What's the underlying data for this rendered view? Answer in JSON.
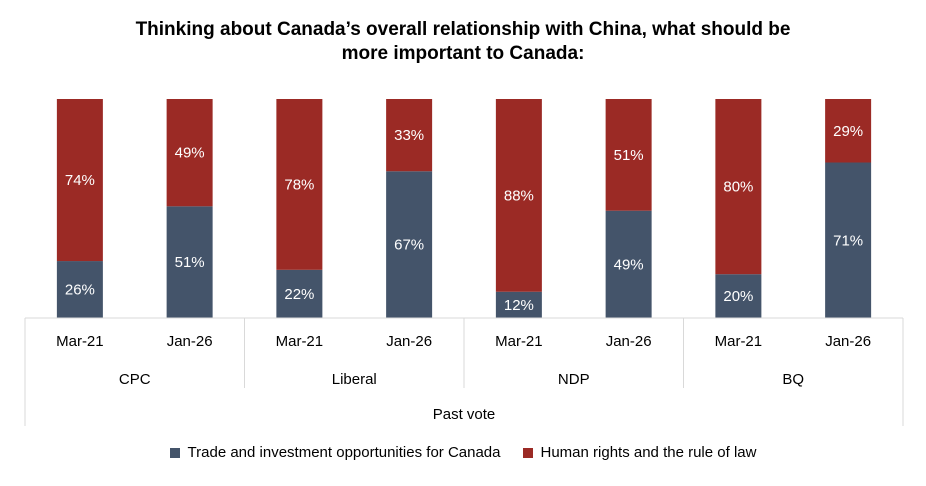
{
  "chart_data": {
    "type": "bar",
    "stacked": true,
    "percent_stacked": true,
    "title": "Thinking about Canada’s overall relationship with China, what should be more important to Canada:",
    "title_lines": [
      "Thinking about Canada’s overall relationship with China, what should be",
      "more important to Canada:"
    ],
    "xlabel": "Past vote",
    "ylabel": "",
    "ylim": [
      0,
      100
    ],
    "grid": false,
    "legend_position": "bottom",
    "groups": [
      {
        "name": "CPC",
        "categories": [
          "Mar-21",
          "Jan-26"
        ]
      },
      {
        "name": "Liberal",
        "categories": [
          "Mar-21",
          "Jan-26"
        ]
      },
      {
        "name": "NDP",
        "categories": [
          "Mar-21",
          "Jan-26"
        ]
      },
      {
        "name": "BQ",
        "categories": [
          "Mar-21",
          "Jan-26"
        ]
      }
    ],
    "categories": [
      "Mar-21",
      "Jan-26",
      "Mar-21",
      "Jan-26",
      "Mar-21",
      "Jan-26",
      "Mar-21",
      "Jan-26"
    ],
    "series": [
      {
        "name": "Trade and investment opportunities for Canada",
        "color": "#44546A",
        "values": [
          26,
          51,
          22,
          67,
          12,
          49,
          20,
          71
        ],
        "labels": [
          "26%",
          "51%",
          "22%",
          "67%",
          "12%",
          "49%",
          "20%",
          "71%"
        ]
      },
      {
        "name": "Human rights and the rule of law",
        "color": "#9B2A25",
        "values": [
          74,
          49,
          78,
          33,
          88,
          51,
          80,
          29
        ],
        "labels": [
          "74%",
          "49%",
          "78%",
          "33%",
          "88%",
          "51%",
          "80%",
          "29%"
        ]
      }
    ]
  }
}
